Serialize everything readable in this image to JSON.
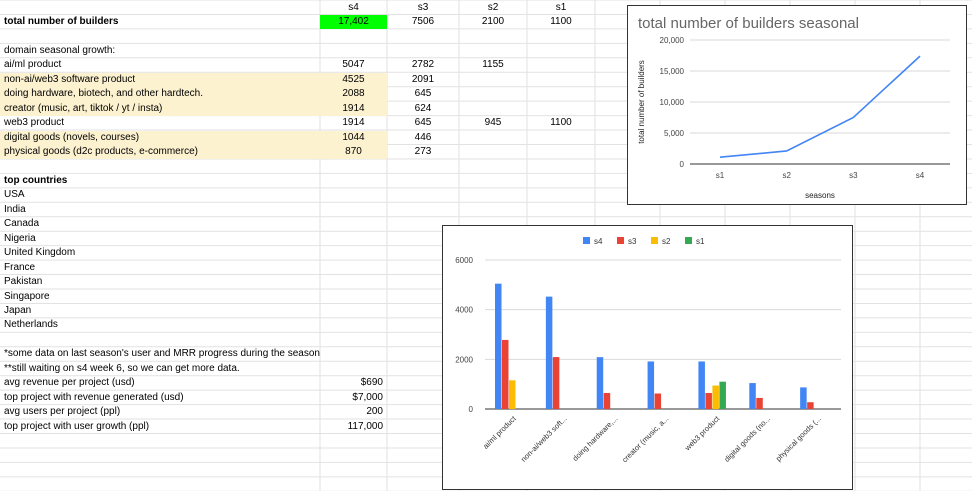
{
  "sheet": {
    "headers": {
      "s4": "s4",
      "s3": "s3",
      "s2": "s2",
      "s1": "s1"
    },
    "total": {
      "label": "total number of builders",
      "s4": "17,402",
      "s3": "7506",
      "s2": "2100",
      "s1": "1100"
    },
    "domain_header": "domain seasonal growth:",
    "domains": [
      {
        "label": "ai/ml product",
        "s4": "5047",
        "s3": "2782",
        "s2": "1155",
        "s1": "",
        "highlight": false
      },
      {
        "label": "non-ai/web3 software product",
        "s4": "4525",
        "s3": "2091",
        "s2": "",
        "s1": "",
        "highlight": true
      },
      {
        "label": "doing hardware, biotech, and other hardtech.",
        "s4": "2088",
        "s3": "645",
        "s2": "",
        "s1": "",
        "highlight": true
      },
      {
        "label": "creator (music, art, tiktok / yt / insta)",
        "s4": "1914",
        "s3": "624",
        "s2": "",
        "s1": "",
        "highlight": true
      },
      {
        "label": "web3 product",
        "s4": "1914",
        "s3": "645",
        "s2": "945",
        "s1": "1100",
        "highlight": false
      },
      {
        "label": "digital goods (novels, courses)",
        "s4": "1044",
        "s3": "446",
        "s2": "",
        "s1": "",
        "highlight": true
      },
      {
        "label": "physical goods (d2c products, e-commerce)",
        "s4": "870",
        "s3": "273",
        "s2": "",
        "s1": "",
        "highlight": true
      }
    ],
    "countries_header": "top countries",
    "countries": [
      "USA",
      "India",
      "Canada",
      "Nigeria",
      "United Kingdom",
      "France",
      "Pakistan",
      "Singapore",
      "Japan",
      "Netherlands"
    ],
    "notes": [
      "*some data on last season's user and MRR progress during the season",
      "**still waiting on s4 week 6, so we can get more data."
    ],
    "metrics": [
      {
        "label": "avg revenue per project (usd)",
        "value": "$690"
      },
      {
        "label": "top project with revenue generated (usd)",
        "value": "$7,000"
      },
      {
        "label": "avg users per project (ppl)",
        "value": "200"
      },
      {
        "label": "top project with user growth (ppl)",
        "value": "117,000"
      }
    ]
  },
  "colors": {
    "s4": "#4285f4",
    "s3": "#ea4335",
    "s2": "#fbbc04",
    "s1": "#34a853",
    "highlight": "#fdf2d0",
    "total_cell": "#00ff00",
    "grid": "#e2e2e2"
  },
  "chart_data": [
    {
      "type": "line",
      "title": "total number of builders seasonal",
      "xlabel": "seasons",
      "ylabel": "total number of builders",
      "categories": [
        "s1",
        "s2",
        "s3",
        "s4"
      ],
      "series": [
        {
          "values": [
            1100,
            2100,
            7506,
            17402
          ]
        }
      ],
      "ylim": [
        0,
        20000
      ],
      "yticks": [
        "0",
        "5,000",
        "10,000",
        "15,000",
        "20,000"
      ],
      "grid": true
    },
    {
      "type": "bar",
      "categories": [
        "ai/ml product",
        "non-ai/web3 soft...",
        "doing hardware,...",
        "creator (music, a...",
        "web3 product",
        "digital goods (no...",
        "physical goods (..."
      ],
      "series": [
        {
          "name": "s4",
          "values": [
            5047,
            4525,
            2088,
            1914,
            1914,
            1044,
            870
          ]
        },
        {
          "name": "s3",
          "values": [
            2782,
            2091,
            645,
            624,
            645,
            446,
            273
          ]
        },
        {
          "name": "s2",
          "values": [
            1155,
            0,
            0,
            0,
            945,
            0,
            0
          ]
        },
        {
          "name": "s1",
          "values": [
            0,
            0,
            0,
            0,
            1100,
            0,
            0
          ]
        }
      ],
      "ylim": [
        0,
        6000
      ],
      "yticks": [
        "0",
        "2000",
        "4000",
        "6000"
      ],
      "legend": "top",
      "grid": true
    }
  ]
}
